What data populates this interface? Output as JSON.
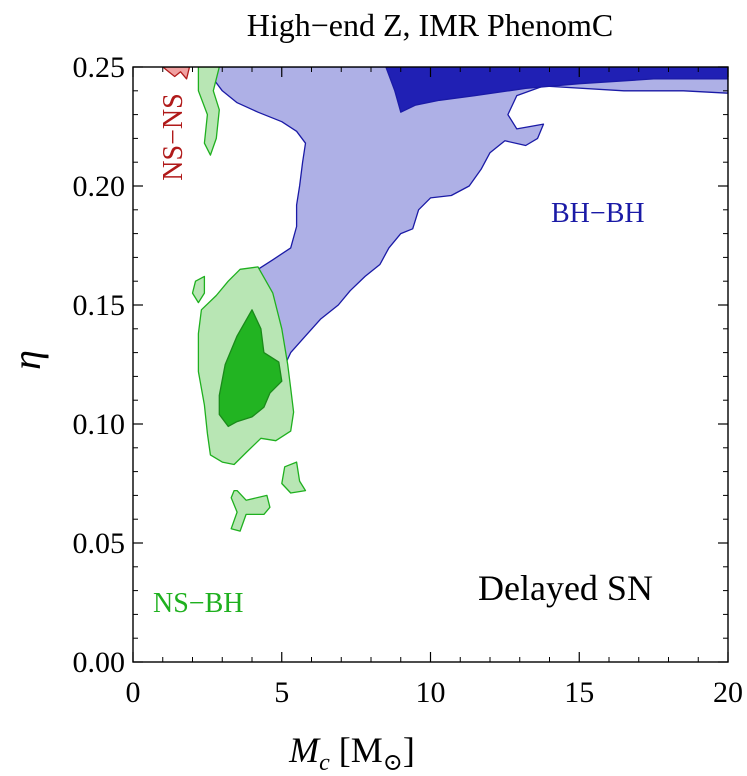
{
  "chart_data": {
    "type": "contour",
    "title": "High−end Z,   IMR PhenomC",
    "xlabel": "M_c  [M_⊙]",
    "ylabel": "η",
    "xlim": [
      0,
      20
    ],
    "ylim": [
      0,
      0.25
    ],
    "x_ticks": [
      "0",
      "5",
      "10",
      "15",
      "20"
    ],
    "y_ticks": [
      "0.00",
      "0.05",
      "0.10",
      "0.15",
      "0.20",
      "0.25"
    ],
    "grid": false,
    "annotations": [
      {
        "text": "Delayed SN",
        "color": "#000000"
      },
      {
        "text": "NS−BH",
        "color": "#1fb01f"
      },
      {
        "text": "BH−BH",
        "color": "#1a1aa6"
      },
      {
        "text": "NS−NS",
        "color": "#b01a1a"
      }
    ],
    "regions": [
      {
        "name": "BH−BH",
        "level": "outer",
        "fill": "#aeb0e6",
        "stroke": "#1a1aa6",
        "points": [
          [
            2.7,
            0.25
          ],
          [
            20,
            0.25
          ],
          [
            20,
            0.239
          ],
          [
            18.5,
            0.24
          ],
          [
            16.5,
            0.24
          ],
          [
            13.8,
            0.242
          ],
          [
            12.9,
            0.238
          ],
          [
            12.6,
            0.23
          ],
          [
            12.9,
            0.224
          ],
          [
            13.8,
            0.226
          ],
          [
            13.6,
            0.22
          ],
          [
            13.2,
            0.217
          ],
          [
            12.5,
            0.219
          ],
          [
            12.0,
            0.214
          ],
          [
            11.7,
            0.207
          ],
          [
            11.3,
            0.2
          ],
          [
            10.7,
            0.196
          ],
          [
            10.0,
            0.195
          ],
          [
            9.6,
            0.19
          ],
          [
            9.4,
            0.182
          ],
          [
            9.0,
            0.18
          ],
          [
            8.6,
            0.174
          ],
          [
            8.3,
            0.167
          ],
          [
            7.8,
            0.162
          ],
          [
            7.3,
            0.156
          ],
          [
            6.9,
            0.15
          ],
          [
            6.3,
            0.144
          ],
          [
            5.8,
            0.137
          ],
          [
            5.3,
            0.13
          ],
          [
            5.0,
            0.122
          ],
          [
            4.7,
            0.119
          ],
          [
            4.4,
            0.13
          ],
          [
            4.2,
            0.143
          ],
          [
            4.1,
            0.155
          ],
          [
            4.2,
            0.165
          ],
          [
            4.7,
            0.169
          ],
          [
            5.3,
            0.174
          ],
          [
            5.5,
            0.183
          ],
          [
            5.5,
            0.192
          ],
          [
            5.6,
            0.2
          ],
          [
            5.7,
            0.21
          ],
          [
            5.8,
            0.218
          ],
          [
            5.5,
            0.223
          ],
          [
            5.0,
            0.227
          ],
          [
            4.2,
            0.231
          ],
          [
            3.5,
            0.235
          ],
          [
            3.0,
            0.24
          ],
          [
            2.7,
            0.245
          ]
        ]
      },
      {
        "name": "BH−BH",
        "level": "inner",
        "fill": "#2020b4",
        "stroke": "#1a1aa6",
        "points": [
          [
            8.5,
            0.25
          ],
          [
            20,
            0.25
          ],
          [
            20,
            0.245
          ],
          [
            17.5,
            0.245
          ],
          [
            15,
            0.243
          ],
          [
            13.2,
            0.241
          ],
          [
            11.5,
            0.238
          ],
          [
            10.3,
            0.236
          ],
          [
            9.5,
            0.234
          ],
          [
            9.0,
            0.231
          ],
          [
            8.8,
            0.24
          ]
        ]
      },
      {
        "name": "NS−BH",
        "level": "outer",
        "fill": "#b8e6b4",
        "stroke": "#1fb01f",
        "points": [
          [
            4.2,
            0.166
          ],
          [
            4.7,
            0.155
          ],
          [
            5.0,
            0.14
          ],
          [
            5.2,
            0.125
          ],
          [
            5.3,
            0.115
          ],
          [
            5.4,
            0.105
          ],
          [
            5.3,
            0.097
          ],
          [
            4.8,
            0.093
          ],
          [
            4.3,
            0.094
          ],
          [
            3.8,
            0.088
          ],
          [
            3.4,
            0.083
          ],
          [
            3.0,
            0.084
          ],
          [
            2.6,
            0.087
          ],
          [
            2.5,
            0.096
          ],
          [
            2.4,
            0.108
          ],
          [
            2.2,
            0.122
          ],
          [
            2.2,
            0.138
          ],
          [
            2.3,
            0.148
          ],
          [
            2.8,
            0.154
          ],
          [
            3.2,
            0.16
          ],
          [
            3.6,
            0.165
          ]
        ]
      },
      {
        "name": "NS−BH",
        "level": "outer",
        "fill": "#b8e6b4",
        "stroke": "#1fb01f",
        "points": [
          [
            3.5,
            0.072
          ],
          [
            3.8,
            0.068
          ],
          [
            4.5,
            0.07
          ],
          [
            4.6,
            0.065
          ],
          [
            4.4,
            0.062
          ],
          [
            3.8,
            0.062
          ],
          [
            3.6,
            0.055
          ],
          [
            3.3,
            0.056
          ],
          [
            3.5,
            0.063
          ],
          [
            3.3,
            0.069
          ],
          [
            3.4,
            0.072
          ]
        ]
      },
      {
        "name": "NS−BH",
        "level": "outer",
        "fill": "#b8e6b4",
        "stroke": "#1fb01f",
        "points": [
          [
            5.1,
            0.082
          ],
          [
            5.5,
            0.084
          ],
          [
            5.6,
            0.076
          ],
          [
            5.8,
            0.072
          ],
          [
            5.3,
            0.071
          ],
          [
            5.0,
            0.075
          ]
        ]
      },
      {
        "name": "NS−BH",
        "level": "outer",
        "fill": "#b8e6b4",
        "stroke": "#1fb01f",
        "points": [
          [
            2.1,
            0.16
          ],
          [
            2.4,
            0.162
          ],
          [
            2.4,
            0.155
          ],
          [
            2.2,
            0.151
          ],
          [
            2.0,
            0.155
          ]
        ]
      },
      {
        "name": "NS−BH",
        "level": "outer",
        "fill": "#b8e6b4",
        "stroke": "#1fb01f",
        "points": [
          [
            2.2,
            0.25
          ],
          [
            2.9,
            0.25
          ],
          [
            2.7,
            0.24
          ],
          [
            2.9,
            0.232
          ],
          [
            2.8,
            0.22
          ],
          [
            2.6,
            0.213
          ],
          [
            2.4,
            0.218
          ],
          [
            2.5,
            0.23
          ],
          [
            2.2,
            0.24
          ]
        ]
      },
      {
        "name": "NS−BH",
        "level": "inner",
        "fill": "#22b422",
        "stroke": "#1a8a1a",
        "points": [
          [
            4.0,
            0.148
          ],
          [
            4.3,
            0.14
          ],
          [
            4.4,
            0.13
          ],
          [
            4.9,
            0.126
          ],
          [
            5.0,
            0.118
          ],
          [
            4.6,
            0.113
          ],
          [
            4.4,
            0.107
          ],
          [
            4.0,
            0.103
          ],
          [
            3.5,
            0.101
          ],
          [
            3.2,
            0.099
          ],
          [
            2.9,
            0.104
          ],
          [
            2.9,
            0.112
          ],
          [
            3.1,
            0.125
          ],
          [
            3.5,
            0.137
          ]
        ]
      },
      {
        "name": "NS−NS",
        "level": "outer",
        "fill": "#f0a0a0",
        "stroke": "#b01a1a",
        "points": [
          [
            1.0,
            0.25
          ],
          [
            1.9,
            0.25
          ],
          [
            1.8,
            0.245
          ],
          [
            1.6,
            0.248
          ],
          [
            1.4,
            0.246
          ],
          [
            1.2,
            0.248
          ]
        ]
      }
    ]
  }
}
